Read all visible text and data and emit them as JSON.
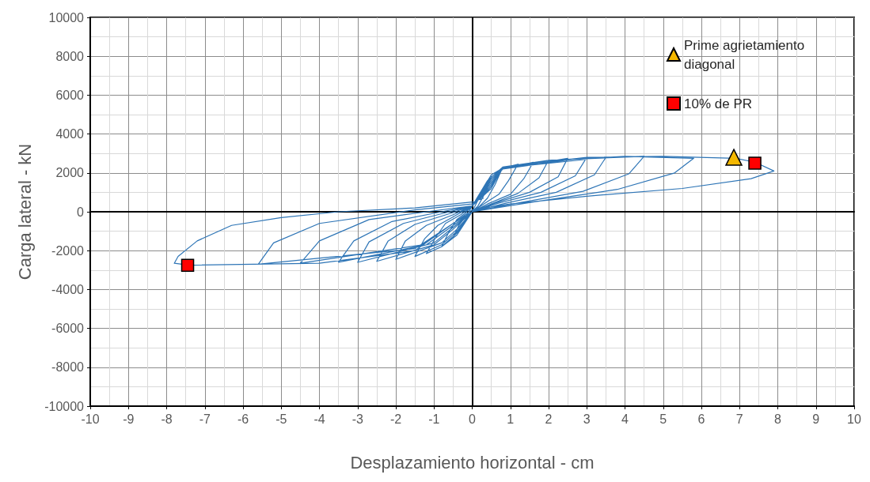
{
  "chart_data": {
    "type": "line",
    "xlabel": "Desplazamiento horizontal - cm",
    "ylabel": "Carga lateral - kN",
    "xlim": [
      -10,
      10
    ],
    "xticks": [
      -10,
      -9,
      -8,
      -7,
      -6,
      -5,
      -4,
      -3,
      -2,
      -1,
      0,
      1,
      2,
      3,
      4,
      5,
      6,
      7,
      8,
      9,
      10
    ],
    "ylim": [
      -10000,
      10000
    ],
    "yticks": [
      -10000,
      -8000,
      -6000,
      -4000,
      -2000,
      0,
      2000,
      4000,
      6000,
      8000,
      10000
    ],
    "grid": true,
    "legend": "top right",
    "series": [
      {
        "color": "#2e75b6",
        "marker": "none",
        "line_style": "solid",
        "x": [
          0,
          0.25,
          0.5,
          0.35,
          0.15,
          0,
          -0.25,
          -0.5,
          -0.35,
          -0.15,
          0,
          0.4,
          0.8,
          0.6,
          0.4,
          0.2,
          0,
          -0.4,
          -0.8,
          -0.6,
          -0.4,
          -0.2,
          0,
          0.5,
          0.8,
          1.2,
          0.95,
          0.7,
          0.3,
          0,
          -0.4,
          -0.8,
          -1.2,
          -0.95,
          -0.7,
          -0.3,
          0,
          0.5,
          0.8,
          1.6,
          1.35,
          1.0,
          0.4,
          0,
          -0.4,
          -0.8,
          -1.5,
          -1.25,
          -0.9,
          -0.4,
          0,
          0.5,
          0.8,
          2.0,
          1.75,
          1.2,
          0.5,
          0,
          -0.4,
          -0.8,
          -2.0,
          -1.75,
          -1.2,
          -0.5,
          0,
          0.5,
          0.8,
          2.5,
          2.25,
          1.5,
          0.6,
          0,
          -0.5,
          -1.0,
          -2.5,
          -2.2,
          -1.5,
          -0.6,
          0,
          0.5,
          0.8,
          3.0,
          2.7,
          1.8,
          0.7,
          0,
          -0.5,
          -1.0,
          -3.0,
          -2.7,
          -1.8,
          -0.7,
          0,
          0.5,
          0.8,
          3.5,
          3.2,
          2.2,
          0.9,
          0,
          -0.5,
          -1.2,
          -3.5,
          -3.1,
          -2.1,
          -0.8,
          0,
          0.5,
          0.8,
          2,
          4.5,
          4.1,
          2.9,
          1.2,
          0,
          -0.5,
          -1.3,
          -4.5,
          -4.0,
          -2.7,
          -1.0,
          0,
          0.5,
          0.8,
          2,
          4,
          5.8,
          5.3,
          3.8,
          1.6,
          0,
          -0.5,
          -1.5,
          -5.6,
          -5.2,
          -4,
          -1.5,
          0,
          0.5,
          0.8,
          3,
          5,
          6.9,
          7.4,
          7.9,
          7.3,
          5.5,
          3,
          1,
          0,
          -0.5,
          -1.5,
          -4,
          -7.4,
          -7.8,
          -7.7,
          -7.2,
          -6.3,
          -5,
          -3.5,
          -1.5,
          0,
          0.3
        ],
        "values": [
          0,
          1000,
          1800,
          1000,
          300,
          0,
          -700,
          -1300,
          -700,
          -200,
          300,
          1600,
          2300,
          1400,
          700,
          300,
          0,
          -1200,
          -1800,
          -1000,
          -400,
          -100,
          300,
          1900,
          2250,
          2450,
          1600,
          900,
          400,
          0,
          -1100,
          -1800,
          -2150,
          -1300,
          -600,
          -150,
          300,
          1800,
          2200,
          2550,
          1700,
          900,
          400,
          0,
          -1000,
          -1700,
          -2300,
          -1400,
          -700,
          -150,
          300,
          1700,
          2200,
          2650,
          1750,
          950,
          400,
          0,
          -900,
          -1600,
          -2450,
          -1500,
          -700,
          -150,
          300,
          1600,
          2200,
          2750,
          1800,
          1000,
          450,
          0,
          -900,
          -1700,
          -2550,
          -1500,
          -650,
          -100,
          300,
          1500,
          2200,
          2800,
          1850,
          1000,
          450,
          0,
          -800,
          -1600,
          -2600,
          -1550,
          -600,
          -50,
          300,
          1400,
          2250,
          2800,
          1900,
          1000,
          450,
          0,
          -700,
          -1700,
          -2600,
          -1500,
          -500,
          0,
          300,
          1300,
          2300,
          2650,
          2850,
          1950,
          1050,
          450,
          0,
          -600,
          -1700,
          -2650,
          -1500,
          -400,
          50,
          300,
          1200,
          2300,
          2650,
          2850,
          2750,
          2000,
          1150,
          500,
          0,
          -600,
          -1900,
          -2700,
          -1600,
          -600,
          100,
          400,
          1200,
          2300,
          2800,
          2850,
          2750,
          2550,
          2100,
          1700,
          1200,
          800,
          400,
          100,
          -600,
          -2000,
          -2650,
          -2750,
          -2650,
          -2300,
          -1500,
          -700,
          -300,
          0,
          200,
          500,
          700
        ]
      },
      {
        "type": "scatter",
        "name": "Prime agrietamiento diagonal",
        "color": "#f5b800",
        "marker": "triangle",
        "x": [
          6.85
        ],
        "values": [
          2800
        ]
      },
      {
        "type": "scatter",
        "name": "10% de PR",
        "color": "#ff0000",
        "marker": "square",
        "x": [
          -7.45,
          7.4
        ],
        "values": [
          -2750,
          2500
        ]
      }
    ]
  }
}
